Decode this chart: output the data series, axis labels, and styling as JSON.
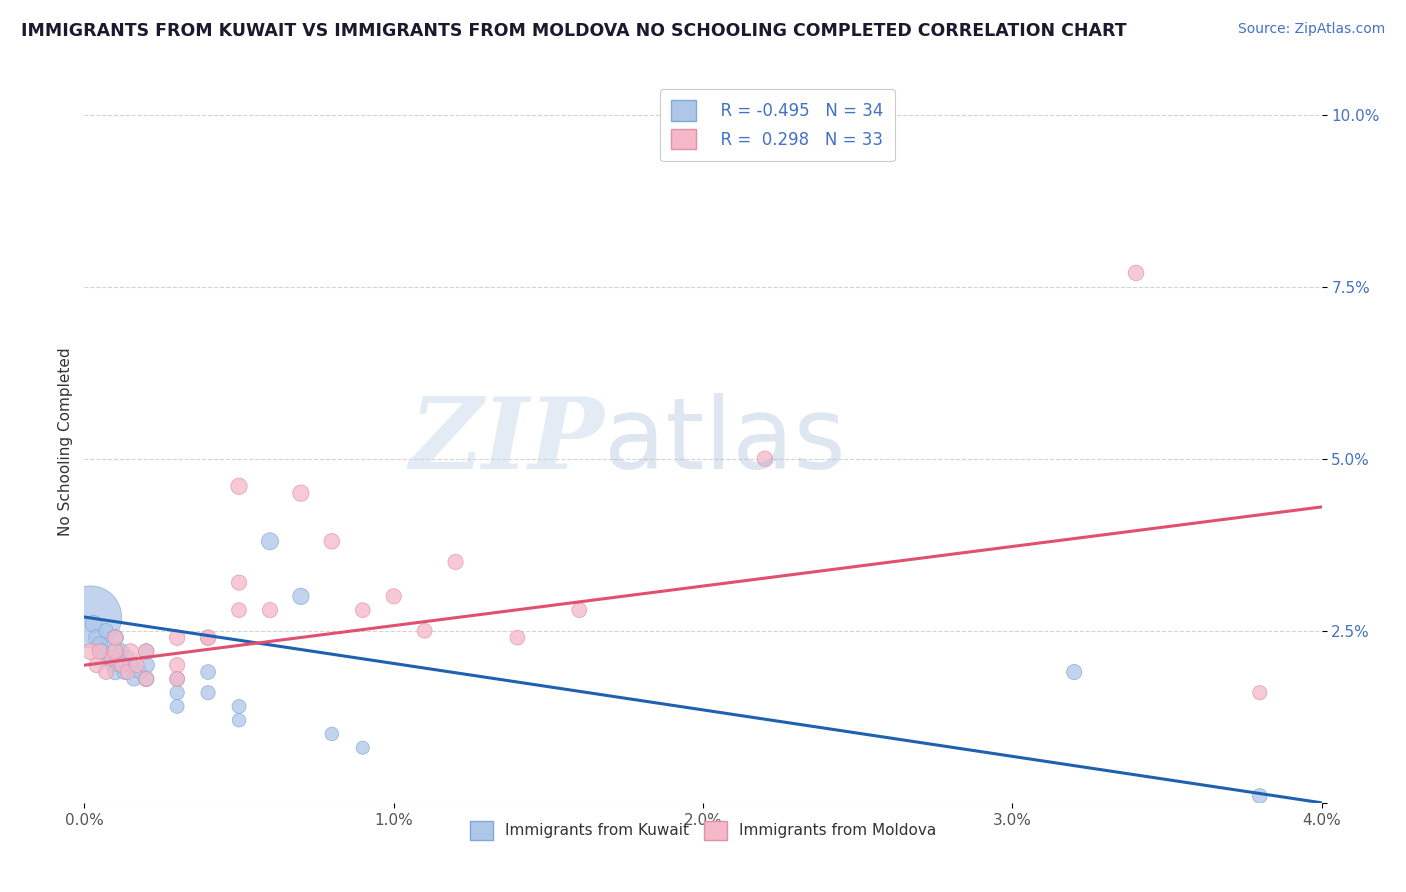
{
  "title": "IMMIGRANTS FROM KUWAIT VS IMMIGRANTS FROM MOLDOVA NO SCHOOLING COMPLETED CORRELATION CHART",
  "source": "Source: ZipAtlas.com",
  "ylabel": "No Schooling Completed",
  "xlim": [
    0.0,
    0.04
  ],
  "ylim": [
    0.0,
    0.105
  ],
  "yticks": [
    0.0,
    0.025,
    0.05,
    0.075,
    0.1
  ],
  "ytick_labels": [
    "",
    "2.5%",
    "5.0%",
    "7.5%",
    "10.0%"
  ],
  "xticks": [
    0.0,
    0.01,
    0.02,
    0.03,
    0.04
  ],
  "xtick_labels": [
    "0.0%",
    "1.0%",
    "2.0%",
    "3.0%",
    "4.0%"
  ],
  "color_kuwait": "#aec6e8",
  "color_moldova": "#f4b8c8",
  "color_kuwait_line": "#2060b0",
  "color_moldova_line": "#e05070",
  "color_tick_right": "#4472c4",
  "color_tick_bottom": "#555555",
  "grid_color": "#c8c8c8",
  "background_color": "#ffffff",
  "kuwait_x": [
    0.0002,
    0.0003,
    0.0004,
    0.0005,
    0.0006,
    0.0007,
    0.0008,
    0.0009,
    0.001,
    0.001,
    0.001,
    0.0012,
    0.0012,
    0.0013,
    0.0014,
    0.0015,
    0.0016,
    0.0018,
    0.002,
    0.002,
    0.002,
    0.003,
    0.003,
    0.003,
    0.004,
    0.004,
    0.005,
    0.005,
    0.006,
    0.007,
    0.008,
    0.009,
    0.032,
    0.038
  ],
  "kuwait_y": [
    0.027,
    0.026,
    0.024,
    0.023,
    0.022,
    0.025,
    0.021,
    0.02,
    0.022,
    0.024,
    0.019,
    0.022,
    0.02,
    0.019,
    0.021,
    0.02,
    0.018,
    0.019,
    0.02,
    0.018,
    0.022,
    0.018,
    0.016,
    0.014,
    0.016,
    0.019,
    0.014,
    0.012,
    0.038,
    0.03,
    0.01,
    0.008,
    0.019,
    0.001
  ],
  "kuwait_size": [
    800,
    60,
    55,
    50,
    50,
    45,
    45,
    42,
    70,
    55,
    50,
    50,
    48,
    45,
    48,
    45,
    42,
    42,
    55,
    50,
    48,
    45,
    42,
    40,
    42,
    45,
    40,
    38,
    60,
    55,
    38,
    36,
    48,
    45
  ],
  "moldova_x": [
    0.0002,
    0.0004,
    0.0005,
    0.0007,
    0.0009,
    0.001,
    0.001,
    0.0012,
    0.0014,
    0.0015,
    0.0017,
    0.002,
    0.002,
    0.003,
    0.003,
    0.003,
    0.004,
    0.004,
    0.005,
    0.005,
    0.005,
    0.006,
    0.007,
    0.008,
    0.009,
    0.01,
    0.011,
    0.012,
    0.014,
    0.016,
    0.022,
    0.034,
    0.038
  ],
  "moldova_y": [
    0.022,
    0.02,
    0.022,
    0.019,
    0.021,
    0.022,
    0.024,
    0.02,
    0.019,
    0.022,
    0.02,
    0.022,
    0.018,
    0.024,
    0.02,
    0.018,
    0.024,
    0.024,
    0.032,
    0.028,
    0.046,
    0.028,
    0.045,
    0.038,
    0.028,
    0.03,
    0.025,
    0.035,
    0.024,
    0.028,
    0.05,
    0.077,
    0.016
  ],
  "moldova_size": [
    55,
    48,
    48,
    45,
    45,
    50,
    48,
    45,
    45,
    50,
    45,
    50,
    45,
    50,
    48,
    45,
    48,
    50,
    48,
    45,
    55,
    48,
    55,
    50,
    45,
    48,
    45,
    48,
    45,
    45,
    50,
    50,
    42
  ],
  "title_color": "#1a1a2e",
  "source_color": "#4472c4",
  "legend_text_color": "#4472c4"
}
